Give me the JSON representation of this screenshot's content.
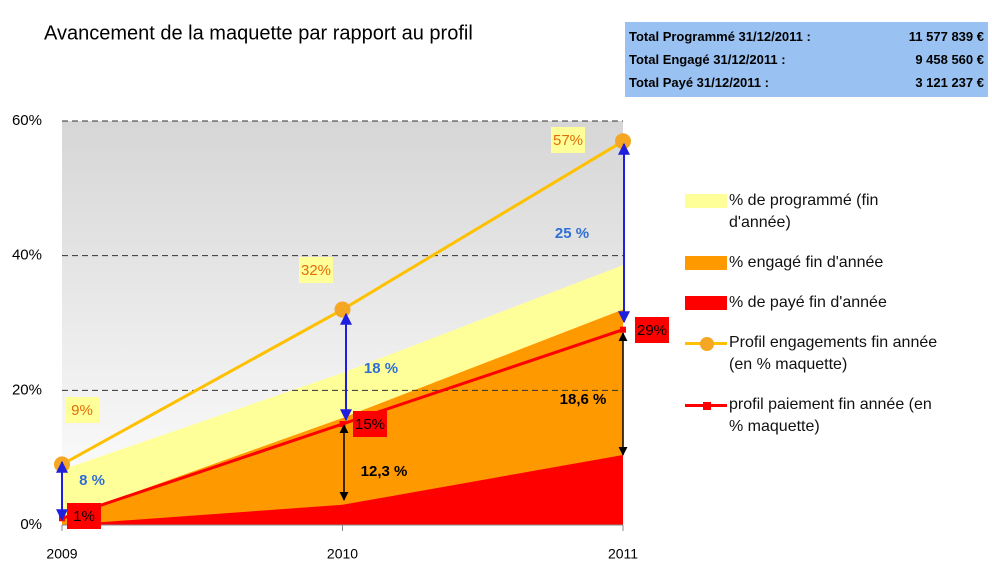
{
  "chart_data": {
    "type": "line",
    "title": "Avancement de la maquette par rapport au profil",
    "categories": [
      "2009",
      "2010",
      "2011"
    ],
    "ylim": [
      0,
      60
    ],
    "yticks": [
      {
        "value": 0,
        "label": "0%"
      },
      {
        "value": 20,
        "label": "20%"
      },
      {
        "value": 40,
        "label": "40%"
      },
      {
        "value": 60,
        "label": "60%"
      }
    ],
    "grid": true,
    "legend": "right",
    "series": [
      {
        "name": "% de programmé (fin d'année)",
        "type": "area",
        "color": "#ffff99",
        "values": [
          8.2,
          22.6,
          38.6
        ]
      },
      {
        "name": "% engagé fin d'année",
        "type": "area",
        "color": "#ff9900",
        "values": [
          1,
          15.9,
          32
        ]
      },
      {
        "name": "% de payé fin d'année",
        "type": "area",
        "color": "#ff0000",
        "values": [
          0,
          3,
          10.4
        ]
      },
      {
        "name": "Profil engagements fin année (en % maquette)",
        "type": "line",
        "color": "#ffc000",
        "marker_color": "#f5a623",
        "marker": "circle",
        "values": [
          9,
          32,
          57
        ],
        "value_labels": [
          "9%",
          "32%",
          "57%"
        ],
        "label_background": "#ffff99",
        "label_color": "#e36c09"
      },
      {
        "name": "profil paiement fin année (en % maquette)",
        "type": "line",
        "color": "#ff0000",
        "marker_color": "#ff0000",
        "marker": "square",
        "values": [
          1,
          15,
          29
        ],
        "value_labels": [
          "1%",
          "15%",
          "29%"
        ],
        "label_background": "#ff0000",
        "label_color": "#000000"
      }
    ],
    "annotations": [
      "8 %",
      "18 %",
      "25 %",
      "12,3 %",
      "18,6 %"
    ],
    "summary": [
      [
        "Total Programmé 31/12/2011 :",
        "11 577 839 €"
      ],
      [
        "Total Engagé 31/12/2011 :",
        "9 458 560 €"
      ],
      [
        "Total Payé 31/12/2011 :",
        "3 121 237 €"
      ]
    ]
  }
}
